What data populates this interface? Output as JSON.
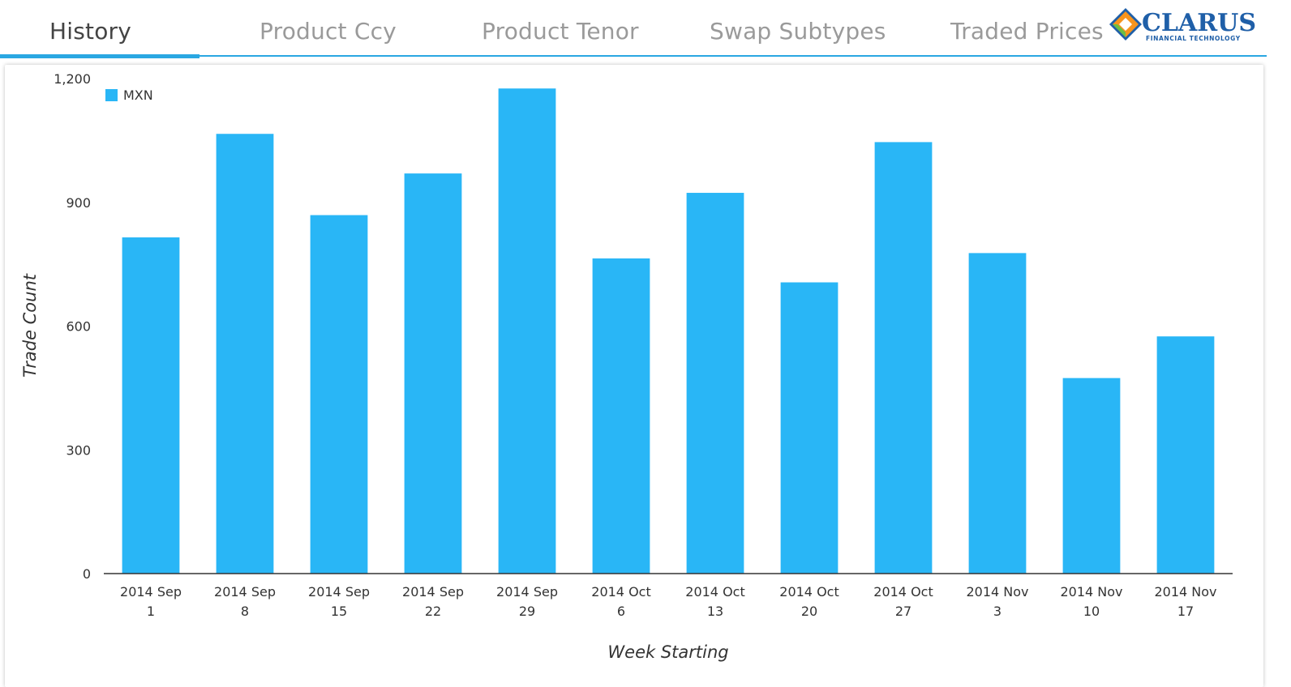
{
  "tabs": [
    {
      "label": "History",
      "active": true
    },
    {
      "label": "Product Ccy",
      "active": false
    },
    {
      "label": "Product Tenor",
      "active": false
    },
    {
      "label": "Swap Subtypes",
      "active": false
    },
    {
      "label": "Traded Prices",
      "active": false
    }
  ],
  "logo": {
    "name": "CLARUS",
    "tagline": "FINANCIAL TECHNOLOGY",
    "icon": "clarus-diamond-logo"
  },
  "colors": {
    "accent": "#2aa7e2",
    "bar": "#29b6f6",
    "logo_blue": "#1f5fa8",
    "logo_orange": "#f7941d",
    "logo_green": "#6cbf44"
  },
  "chart_data": {
    "type": "bar",
    "categories": [
      [
        "2014 Sep",
        "1"
      ],
      [
        "2014 Sep",
        "8"
      ],
      [
        "2014 Sep",
        "15"
      ],
      [
        "2014 Sep",
        "22"
      ],
      [
        "2014 Sep",
        "29"
      ],
      [
        "2014 Oct",
        "6"
      ],
      [
        "2014 Oct",
        "13"
      ],
      [
        "2014 Oct",
        "20"
      ],
      [
        "2014 Oct",
        "27"
      ],
      [
        "2014 Nov",
        "3"
      ],
      [
        "2014 Nov",
        "10"
      ],
      [
        "2014 Nov",
        "17"
      ]
    ],
    "series": [
      {
        "name": "MXN",
        "values": [
          815,
          1066,
          869,
          970,
          1176,
          764,
          923,
          706,
          1046,
          777,
          474,
          575
        ]
      }
    ],
    "xlabel": "Week Starting",
    "ylabel": "Trade Count",
    "ylim": [
      0,
      1200
    ],
    "yticks": [
      0,
      300,
      600,
      900,
      1200
    ],
    "ytick_labels": [
      "0",
      "300",
      "600",
      "900",
      "1,200"
    ],
    "grid": false,
    "legend": "top-left"
  }
}
